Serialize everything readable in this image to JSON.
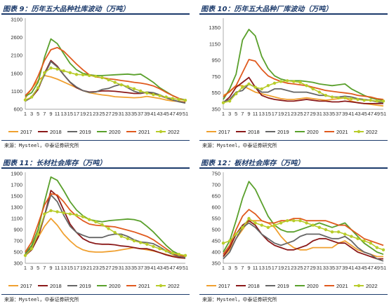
{
  "x_ticks": [
    "1",
    "3",
    "5",
    "7",
    "9",
    "11",
    "13",
    "15",
    "17",
    "19",
    "21",
    "23",
    "25",
    "27",
    "29",
    "31",
    "33",
    "35",
    "37",
    "39",
    "41",
    "43",
    "45",
    "47",
    "49",
    "51"
  ],
  "series_colors": {
    "2017": "#f0a030",
    "2018": "#8b1a1a",
    "2019": "#666666",
    "2020": "#5aa02c",
    "2021": "#e05a1e",
    "2022": "#b8cc2a"
  },
  "source_text": "来源：Mysteel，中泰证券研究所",
  "chart_data": [
    {
      "type": "line",
      "title": "图表 9：历年五大品种社库波动（万吨）",
      "ylim": [
        600,
        3100
      ],
      "yticks": [
        600,
        1100,
        1600,
        2100,
        2600,
        3100
      ],
      "series": [
        {
          "name": "2017",
          "values": [
            900,
            1180,
            1400,
            1540,
            1500,
            1440,
            1360,
            1280,
            1200,
            1120,
            1060,
            1030,
            1000,
            980,
            950,
            940,
            930,
            920,
            930,
            960,
            930,
            900,
            860,
            830,
            820,
            800
          ]
        },
        {
          "name": "2018",
          "values": [
            830,
            930,
            1150,
            1600,
            1960,
            1800,
            1560,
            1350,
            1200,
            1120,
            1080,
            1090,
            1110,
            1110,
            1100,
            1080,
            1060,
            1040,
            1040,
            1070,
            1030,
            980,
            920,
            860,
            810,
            780
          ]
        },
        {
          "name": "2019",
          "values": [
            820,
            950,
            1200,
            1560,
            1930,
            1780,
            1560,
            1360,
            1220,
            1120,
            1070,
            1080,
            1150,
            1180,
            1250,
            1300,
            1200,
            1100,
            1050,
            1080,
            1060,
            1000,
            920,
            860,
            810,
            770
          ]
        },
        {
          "name": "2020",
          "values": [
            960,
            1060,
            1350,
            2050,
            2560,
            2430,
            2150,
            1880,
            1700,
            1600,
            1560,
            1540,
            1540,
            1550,
            1560,
            1570,
            1580,
            1560,
            1580,
            1470,
            1350,
            1200,
            1090,
            980,
            900,
            860
          ]
        },
        {
          "name": "2021",
          "values": [
            980,
            1160,
            1520,
            1960,
            2260,
            2320,
            2220,
            2040,
            1860,
            1700,
            1560,
            1500,
            1480,
            1450,
            1430,
            1400,
            1380,
            1350,
            1330,
            1300,
            1250,
            1170,
            1070,
            980,
            900,
            840
          ]
        },
        {
          "name": "2022",
          "values": [
            860,
            940,
            1200,
            1620,
            1750,
            1720,
            1670,
            1620,
            1570,
            1560,
            1540,
            1520,
            1480,
            1420,
            1350,
            1280,
            1230,
            1170,
            1110,
            1050,
            1010,
            980,
            940,
            900,
            870,
            850
          ]
        }
      ]
    },
    {
      "type": "line",
      "title": "图表 10：历年五大品种厂库波动（万吨）",
      "ylim": [
        350,
        1450
      ],
      "yticks": [
        350,
        550,
        750,
        950,
        1150,
        1350
      ],
      "series": [
        {
          "name": "2017",
          "values": [
            520,
            560,
            640,
            640,
            600,
            560,
            540,
            520,
            500,
            480,
            470,
            470,
            480,
            490,
            480,
            470,
            460,
            470,
            480,
            490,
            450,
            430,
            420,
            410,
            400,
            390
          ]
        },
        {
          "name": "2018",
          "values": [
            430,
            500,
            620,
            680,
            740,
            620,
            520,
            490,
            470,
            460,
            450,
            450,
            460,
            470,
            460,
            450,
            450,
            440,
            440,
            450,
            440,
            430,
            420,
            420,
            420,
            420
          ]
        },
        {
          "name": "2019",
          "values": [
            440,
            470,
            560,
            580,
            660,
            620,
            560,
            560,
            600,
            600,
            580,
            560,
            560,
            560,
            540,
            520,
            520,
            500,
            500,
            510,
            500,
            480,
            470,
            460,
            440,
            430
          ]
        },
        {
          "name": "2020",
          "values": [
            470,
            600,
            780,
            1200,
            1330,
            1250,
            1000,
            850,
            760,
            720,
            700,
            700,
            700,
            690,
            680,
            660,
            650,
            640,
            650,
            660,
            600,
            560,
            520,
            490,
            470,
            460
          ]
        },
        {
          "name": "2021",
          "values": [
            500,
            570,
            640,
            800,
            960,
            940,
            840,
            760,
            720,
            690,
            670,
            660,
            650,
            640,
            620,
            600,
            580,
            570,
            560,
            550,
            540,
            520,
            510,
            500,
            480,
            470
          ]
        },
        {
          "name": "2022",
          "values": [
            430,
            450,
            540,
            620,
            660,
            620,
            600,
            640,
            670,
            690,
            700,
            690,
            680,
            640,
            600,
            560,
            520,
            500,
            490,
            490,
            480,
            470,
            460,
            460,
            450,
            450
          ]
        }
      ]
    },
    {
      "type": "line",
      "title": "图表 11：长材社会库存（万吨）",
      "ylim": [
        300,
        1900
      ],
      "yticks": [
        300,
        500,
        700,
        900,
        1100,
        1300,
        1500,
        1700,
        1900
      ],
      "series": [
        {
          "name": "2017",
          "values": [
            470,
            600,
            760,
            960,
            1100,
            980,
            820,
            700,
            600,
            540,
            510,
            500,
            500,
            510,
            520,
            540,
            560,
            580,
            560,
            540,
            520,
            490,
            460,
            430,
            410,
            400
          ]
        },
        {
          "name": "2018",
          "values": [
            440,
            540,
            760,
            1150,
            1600,
            1500,
            1250,
            1000,
            850,
            740,
            680,
            650,
            640,
            640,
            630,
            610,
            600,
            580,
            560,
            560,
            530,
            490,
            450,
            420,
            400,
            390
          ]
        },
        {
          "name": "2019",
          "values": [
            460,
            580,
            820,
            1150,
            1520,
            1400,
            1160,
            960,
            850,
            800,
            760,
            760,
            760,
            800,
            820,
            820,
            780,
            720,
            680,
            670,
            650,
            590,
            520,
            460,
            420,
            400
          ]
        },
        {
          "name": "2020",
          "values": [
            480,
            620,
            900,
            1400,
            1840,
            1780,
            1600,
            1400,
            1250,
            1150,
            1080,
            1060,
            1040,
            1060,
            1070,
            1080,
            1090,
            1080,
            1050,
            960,
            860,
            740,
            620,
            520,
            460,
            420
          ]
        },
        {
          "name": "2021",
          "values": [
            500,
            680,
            1000,
            1340,
            1540,
            1520,
            1400,
            1250,
            1140,
            1060,
            1000,
            980,
            970,
            960,
            950,
            920,
            890,
            860,
            820,
            780,
            720,
            640,
            560,
            480,
            440,
            420
          ]
        },
        {
          "name": "2022",
          "values": [
            440,
            560,
            820,
            1180,
            1240,
            1220,
            1200,
            1180,
            1160,
            1130,
            1080,
            1040,
            990,
            920,
            850,
            780,
            740,
            700,
            670,
            640,
            600,
            560,
            520,
            480,
            460,
            440
          ]
        }
      ]
    },
    {
      "type": "line",
      "title": "图表 12：板材社会库存（万吨）",
      "ylim": [
        350,
        750
      ],
      "yticks": [
        350,
        400,
        450,
        500,
        550,
        600,
        650,
        700,
        750
      ],
      "series": [
        {
          "name": "2017",
          "values": [
            380,
            410,
            460,
            500,
            540,
            540,
            540,
            530,
            510,
            470,
            440,
            420,
            410,
            410,
            420,
            420,
            420,
            420,
            440,
            450,
            430,
            410,
            400,
            390,
            380,
            380
          ]
        },
        {
          "name": "2018",
          "values": [
            380,
            420,
            480,
            520,
            540,
            520,
            480,
            450,
            430,
            420,
            410,
            410,
            420,
            430,
            450,
            460,
            460,
            450,
            440,
            440,
            420,
            400,
            390,
            380,
            370,
            370
          ]
        },
        {
          "name": "2019",
          "values": [
            370,
            400,
            460,
            510,
            530,
            510,
            480,
            460,
            440,
            430,
            440,
            450,
            470,
            480,
            480,
            480,
            470,
            460,
            460,
            470,
            450,
            420,
            400,
            390,
            370,
            360
          ]
        },
        {
          "name": "2020",
          "values": [
            400,
            450,
            540,
            640,
            715,
            680,
            620,
            560,
            520,
            500,
            490,
            490,
            500,
            510,
            520,
            530,
            520,
            510,
            520,
            530,
            500,
            470,
            440,
            420,
            400,
            390
          ]
        },
        {
          "name": "2021",
          "values": [
            390,
            430,
            500,
            560,
            590,
            570,
            540,
            530,
            530,
            540,
            540,
            550,
            550,
            540,
            540,
            540,
            540,
            530,
            520,
            520,
            500,
            480,
            460,
            450,
            440,
            430
          ]
        },
        {
          "name": "2022",
          "values": [
            440,
            450,
            480,
            510,
            550,
            530,
            520,
            510,
            520,
            530,
            540,
            540,
            540,
            530,
            520,
            510,
            500,
            490,
            490,
            480,
            470,
            460,
            450,
            440,
            420,
            410
          ]
        }
      ]
    }
  ]
}
